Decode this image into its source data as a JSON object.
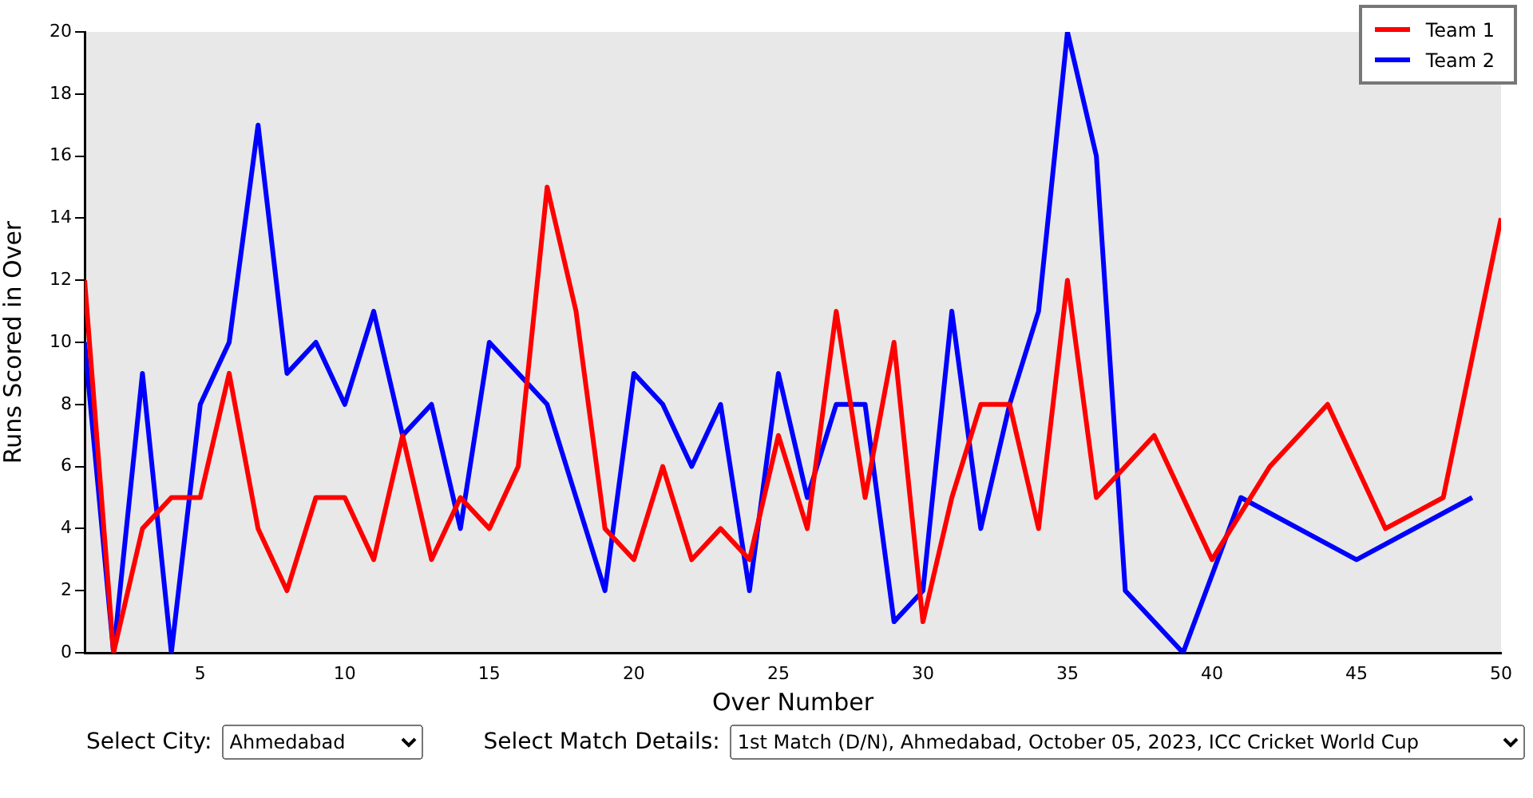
{
  "chart_data": {
    "type": "line",
    "xlabel": "Over Number",
    "ylabel": "Runs Scored in Over",
    "xlim": [
      1,
      50
    ],
    "xticks": [
      5,
      10,
      15,
      20,
      25,
      30,
      35,
      40,
      45,
      50
    ],
    "ylim": [
      0,
      20
    ],
    "yticks": [
      0,
      2,
      4,
      6,
      8,
      10,
      12,
      14,
      16,
      18,
      20
    ],
    "grid": false,
    "legend": "top right",
    "marker": "none",
    "line_style": "solid",
    "series": [
      {
        "name": "Team 1",
        "color": "#ff0000",
        "x": [
          1,
          2,
          3,
          4,
          5,
          6,
          7,
          8,
          9,
          10,
          11,
          12,
          13,
          14,
          15,
          16,
          17,
          18,
          19,
          20,
          21,
          22,
          23,
          24,
          25,
          26,
          27,
          28,
          29,
          30,
          31,
          32,
          33,
          34,
          35,
          36,
          38,
          40,
          42,
          44,
          46,
          48,
          50
        ],
        "values": [
          12,
          0,
          4,
          5,
          5,
          9,
          4,
          2,
          5,
          5,
          3,
          7,
          3,
          5,
          4,
          6,
          15,
          11,
          4,
          3,
          6,
          3,
          4,
          3,
          7,
          4,
          11,
          5,
          10,
          1,
          5,
          8,
          8,
          4,
          12,
          5,
          7,
          3,
          6,
          8,
          4,
          5,
          14
        ]
      },
      {
        "name": "Team 2",
        "color": "#0000ff",
        "x": [
          1,
          2,
          3,
          4,
          5,
          6,
          7,
          8,
          9,
          10,
          11,
          12,
          13,
          14,
          15,
          17,
          19,
          20,
          21,
          22,
          23,
          24,
          25,
          26,
          27,
          28,
          29,
          30,
          31,
          32,
          33,
          34,
          35,
          36,
          37,
          39,
          41,
          45,
          49
        ],
        "values": [
          10,
          0,
          9,
          0,
          8,
          10,
          17,
          9,
          10,
          8,
          11,
          7,
          8,
          4,
          10,
          8,
          2,
          9,
          8,
          6,
          8,
          2,
          9,
          5,
          8,
          8,
          1,
          2,
          11,
          4,
          8,
          11,
          20,
          16,
          2,
          0,
          5,
          3,
          5
        ]
      }
    ],
    "annotations": [
      "Select City:",
      "Ahmedabad",
      "Select Match Details:",
      "1st Match (D/N), Ahmedabad, October 05, 2023, ICC Cricket World Cup"
    ]
  }
}
